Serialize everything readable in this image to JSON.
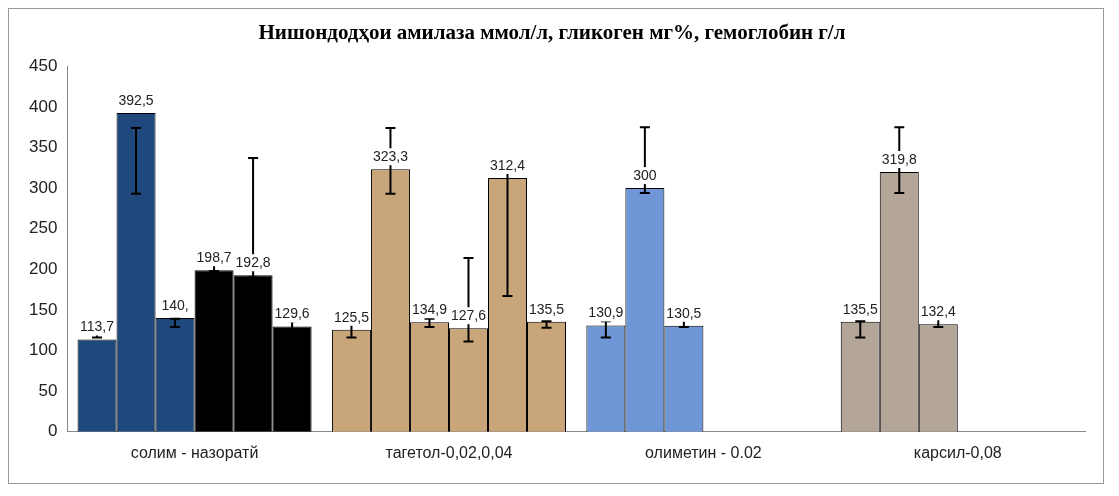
{
  "chart_data": {
    "type": "bar",
    "title": "Нишондодҳои амилаза ммол/л, гликоген мг%, гемоглобин г/л",
    "categories": [
      "солим - назоратй",
      "тагетол-0,02,0,04",
      "олиметин - 0.02",
      "карсил-0,08"
    ],
    "series": [
      {
        "colors": [
          "#1f497d",
          "#c9a57a",
          "#6f97d8",
          "#b3a699"
        ],
        "values": [
          113.7,
          125.5,
          130.9,
          135.5
        ],
        "value_labels": [
          "113,7",
          "125,5",
          "130,9",
          "135,5"
        ],
        "errors": [
          [
            116,
            135
          ],
          [
            116,
            135
          ],
          [
            116,
            136
          ],
          [
            116,
            136
          ]
        ]
      },
      {
        "colors": [
          "#1f497d",
          "#c9a57a",
          "#6f97d8",
          "#b3a699"
        ],
        "values": [
          392.5,
          323.3,
          300,
          319.8
        ],
        "value_labels": [
          "392,5",
          "323,3",
          "300",
          "319,8"
        ],
        "errors": [
          [
            293,
            374
          ],
          [
            293,
            374
          ],
          [
            294,
            375
          ],
          [
            294,
            375
          ]
        ]
      },
      {
        "colors": [
          "#1f497d",
          "#c9a57a",
          "#6f97d8",
          "#b3a699"
        ],
        "values": [
          140,
          134.9,
          130.5,
          132.4
        ],
        "value_labels": [
          "140,",
          "134,9",
          "130,5",
          "132,4"
        ],
        "errors": [
          [
            129,
            139
          ],
          [
            129,
            139
          ],
          [
            129,
            139
          ],
          [
            129,
            139
          ]
        ]
      },
      {
        "colors": [
          "#000000",
          "#c9a57a",
          null,
          null
        ],
        "values": [
          198.7,
          127.6,
          null,
          null
        ],
        "value_labels": [
          "198,7",
          "127,6",
          null,
          null
        ],
        "errors": [
          [
            198,
            214
          ],
          [
            111,
            214
          ],
          null,
          null
        ]
      },
      {
        "colors": [
          "#000000",
          "#c9a57a",
          null,
          null
        ],
        "values": [
          192.8,
          312.4,
          null,
          null
        ],
        "value_labels": [
          "192,8",
          "312,4",
          null,
          null
        ],
        "errors": [
          [
            190,
            337
          ],
          [
            167,
            337
          ],
          null,
          null
        ]
      },
      {
        "colors": [
          "#000000",
          "#c9a57a",
          null,
          null
        ],
        "values": [
          129.6,
          135.5,
          null,
          null
        ],
        "value_labels": [
          "129,6",
          "135,5",
          null,
          null
        ],
        "errors": [
          [
            126,
            136
          ],
          [
            128,
            136
          ],
          null,
          null
        ]
      }
    ],
    "ylim": [
      0,
      450
    ],
    "yticks": [
      0,
      50,
      100,
      150,
      200,
      250,
      300,
      350,
      400,
      450
    ],
    "grid": false,
    "legend": false
  }
}
